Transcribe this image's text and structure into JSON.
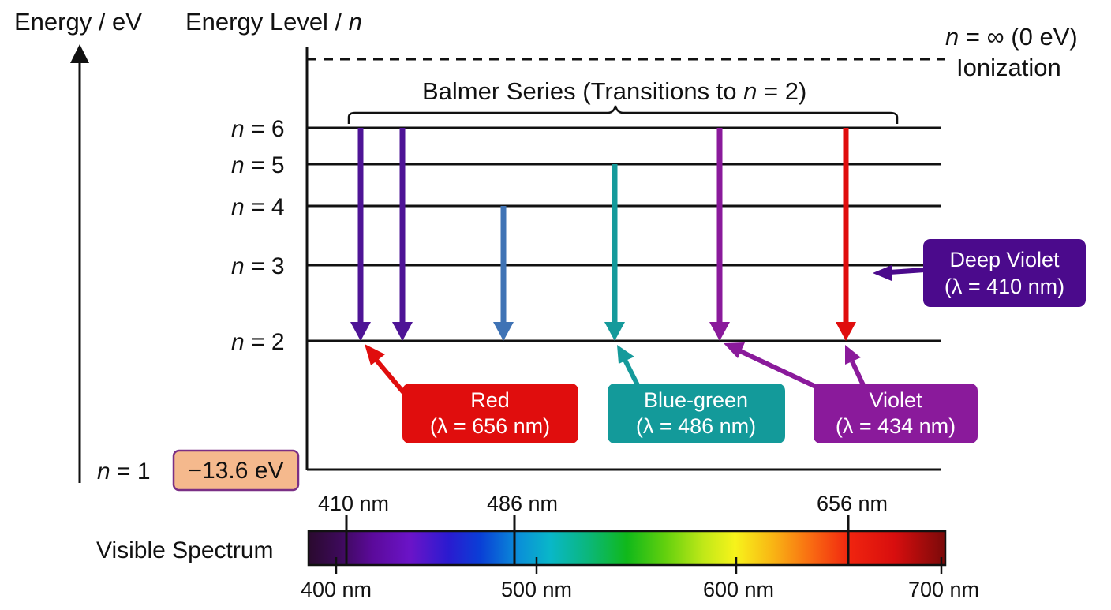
{
  "axes": {
    "energy_label": "Energy / eV",
    "level_label_prefix": "Energy Level / ",
    "level_label_var": "n"
  },
  "ionization": {
    "line1_var": "n",
    "line1_rest": " = ∞ (0 eV)",
    "line2": "Ionization"
  },
  "series_title": {
    "prefix": "Balmer Series (Transitions to ",
    "var": "n",
    "suffix": " = 2)"
  },
  "levels": [
    {
      "id": "6",
      "var": "n",
      "text": " = 6"
    },
    {
      "id": "5",
      "var": "n",
      "text": " = 5"
    },
    {
      "id": "4",
      "var": "n",
      "text": " = 4"
    },
    {
      "id": "3",
      "var": "n",
      "text": " = 3"
    },
    {
      "id": "2",
      "var": "n",
      "text": " = 2"
    },
    {
      "id": "1",
      "var": "n",
      "text": " = 1"
    }
  ],
  "ground_energy": "−13.6 eV",
  "labels": {
    "red": {
      "name": "Red",
      "wavelength": "(λ = 656 nm)",
      "color": "#e00d0d"
    },
    "blue_green": {
      "name": "Blue-green",
      "wavelength": "(λ = 486 nm)",
      "color": "#139a9a"
    },
    "violet": {
      "name": "Violet",
      "wavelength": "(λ = 434 nm)",
      "color": "#8a1a9b"
    },
    "deep_violet": {
      "name": "Deep Violet",
      "wavelength": "(λ = 410 nm)",
      "color": "#4b0a8c"
    }
  },
  "transition_colors": {
    "deep_violet": "#4e1496",
    "blue": "#3f73b5",
    "teal": "#159a9b",
    "violet": "#8a1a9b",
    "red": "#e00d0d"
  },
  "spectrum": {
    "label": "Visible Spectrum",
    "marker_labels": [
      "410 nm",
      "486 nm",
      "656 nm"
    ],
    "tick_labels": [
      "400 nm",
      "500 nm",
      "600 nm",
      "700 nm"
    ]
  },
  "ground_badge_color": "#f5b98d"
}
